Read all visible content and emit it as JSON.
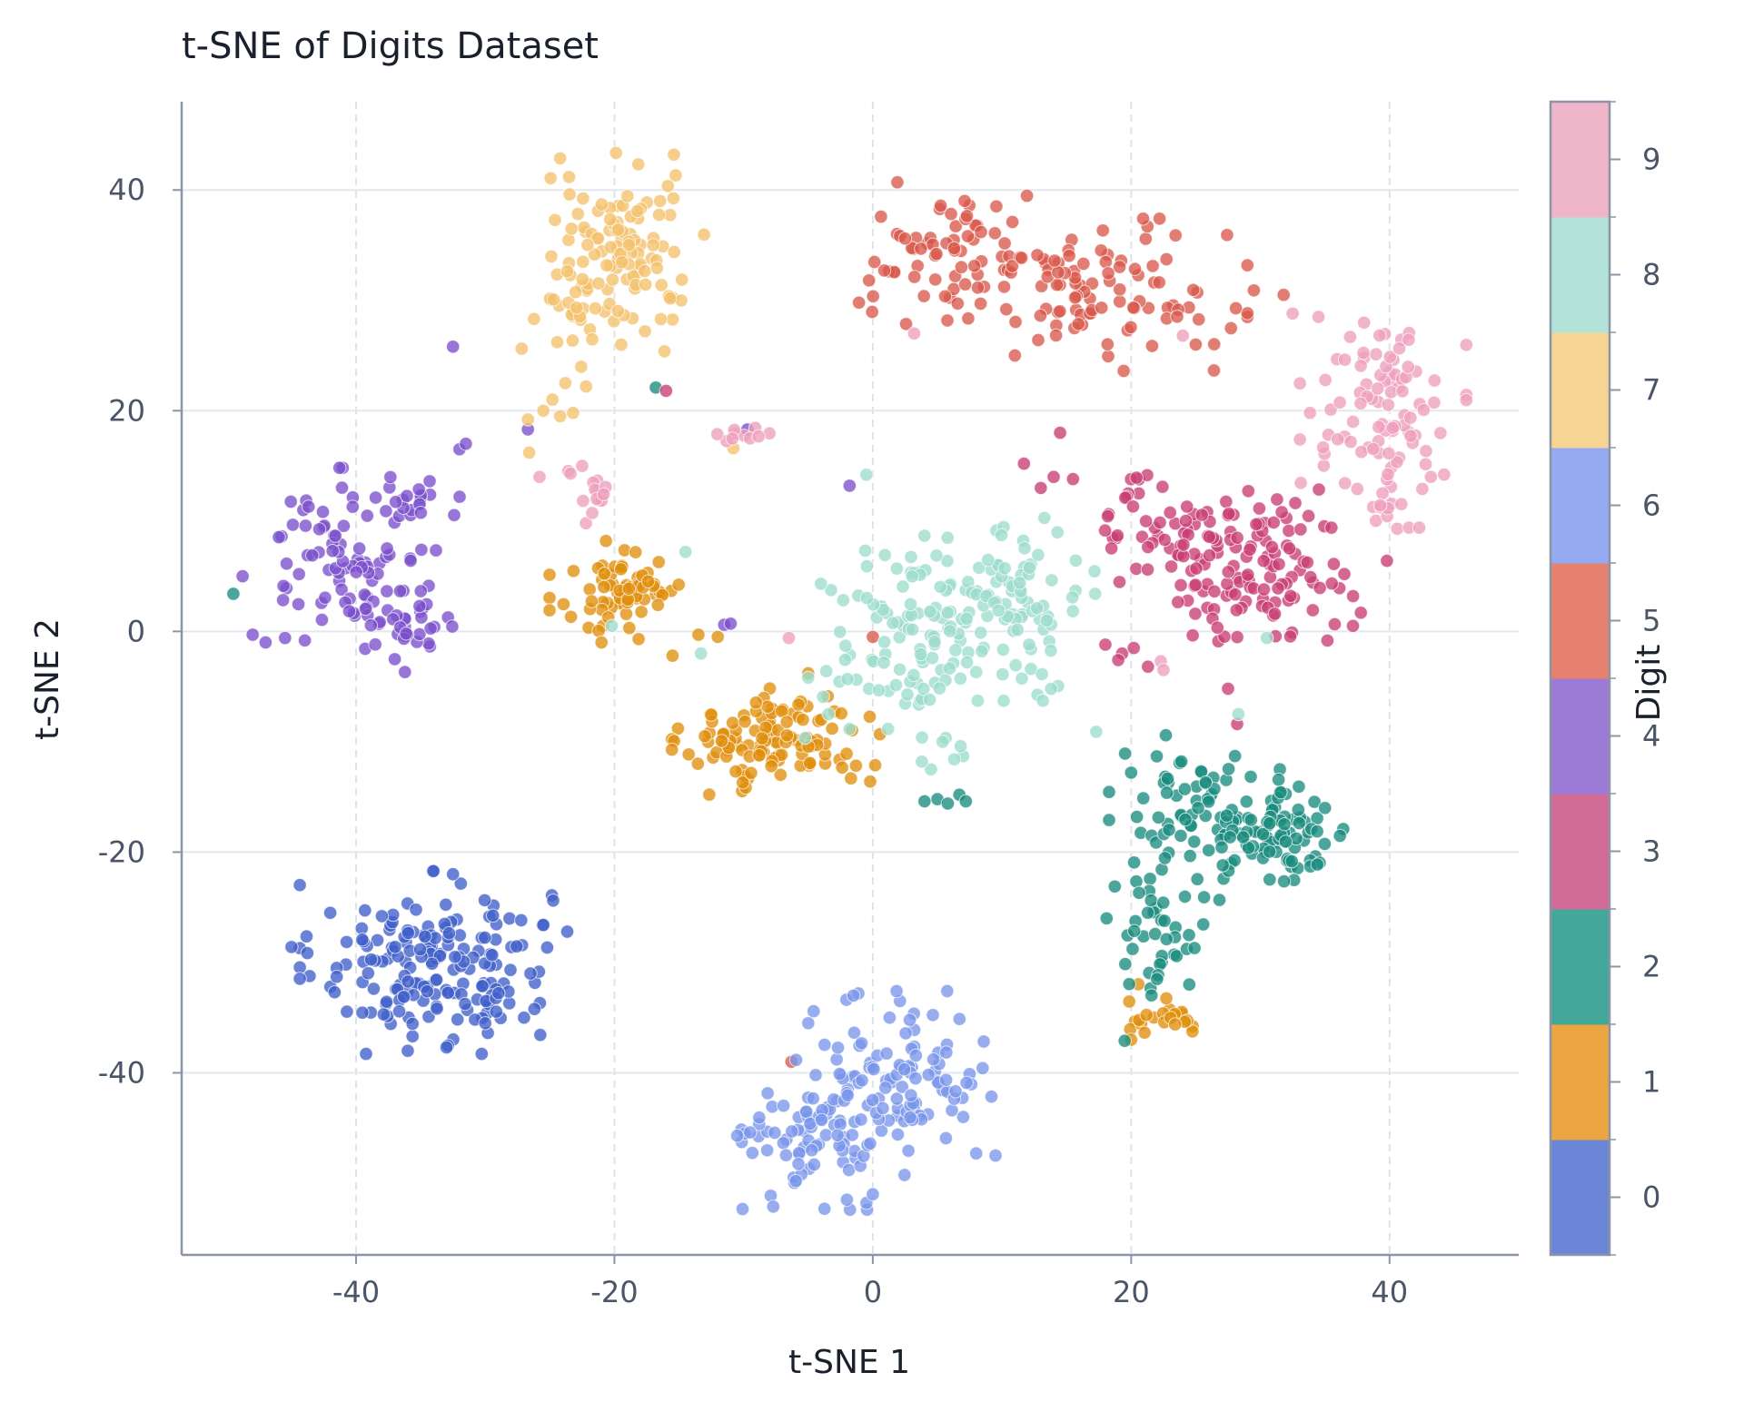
{
  "chart_data": {
    "type": "scatter",
    "title": "t-SNE of Digits Dataset",
    "xlabel": "t-SNE 1",
    "ylabel": "t-SNE 2",
    "xlim": [
      -53.5,
      50
    ],
    "ylim": [
      -56.5,
      48
    ],
    "xticks": [
      -40,
      -20,
      0,
      20,
      40
    ],
    "yticks": [
      -40,
      -20,
      0,
      20,
      40
    ],
    "grid": true,
    "colorbar": {
      "label": "Digit",
      "ticks": [
        "0",
        "1",
        "2",
        "3",
        "4",
        "5",
        "6",
        "7",
        "8",
        "9"
      ],
      "colors": [
        "#6b86d6",
        "#eba641",
        "#43a89a",
        "#d26a96",
        "#9b7bd6",
        "#e6806f",
        "#95aaf0",
        "#f6d594",
        "#b3e3d8",
        "#efb6ca"
      ]
    },
    "series": [
      {
        "label": "0",
        "color": "#3f5fc9",
        "center": [
          -34,
          -30
        ],
        "spread": [
          4.5,
          3.6
        ],
        "n": 180,
        "points": [
          [
            -38,
            -25.8
          ],
          [
            -42,
            -25.5
          ],
          [
            -32.5,
            -22
          ],
          [
            -25.5,
            -26.6
          ],
          [
            -45,
            -28.6
          ],
          [
            -41.5,
            -30.5
          ],
          [
            -41.5,
            -31.3
          ],
          [
            -26.5,
            -31
          ],
          [
            -27,
            -35
          ],
          [
            -36,
            -38
          ],
          [
            -30,
            -35.5
          ],
          [
            -33,
            -37.7
          ]
        ]
      },
      {
        "label": "1",
        "color": "#e08e0b",
        "clusters": [
          {
            "center": [
              -7.5,
              -10
            ],
            "spread": [
              3.5,
              2.1
            ],
            "n": 120
          },
          {
            "center": [
              -19.5,
              3.6
            ],
            "spread": [
              2.4,
              2.0
            ],
            "n": 70
          },
          {
            "center": [
              22.5,
              -34.5
            ],
            "spread": [
              1.8,
              1.1
            ],
            "n": 22
          }
        ],
        "points": [
          [
            -13.5,
            -0.3
          ],
          [
            -15.5,
            -2.2
          ],
          [
            -12,
            -0.5
          ],
          [
            -4,
            -8
          ],
          [
            -13,
            -9.5
          ],
          [
            -5,
            -3.8
          ],
          [
            20,
            -37
          ],
          [
            -21,
            -1
          ]
        ]
      },
      {
        "label": "2",
        "color": "#1a8c7e",
        "clusters": [
          {
            "center": [
              31.5,
              -18
            ],
            "spread": [
              2.8,
              2.5
            ],
            "n": 90
          },
          {
            "center": [
              24.5,
              -17
            ],
            "spread": [
              2.7,
              3.3
            ],
            "n": 65
          },
          {
            "center": [
              22,
              -27
            ],
            "spread": [
              2.1,
              2.6
            ],
            "n": 38
          }
        ],
        "points": [
          [
            5,
            -15.2
          ],
          [
            5.8,
            -15.6
          ],
          [
            6.7,
            -14.8
          ],
          [
            7.2,
            -15.4
          ],
          [
            4,
            -15.4
          ],
          [
            20,
            -12.8
          ],
          [
            19.5,
            -37.1
          ],
          [
            -49.5,
            3.4
          ],
          [
            -16.8,
            22.1
          ],
          [
            35,
            -16
          ],
          [
            22,
            -31.5
          ],
          [
            24.5,
            -32
          ]
        ]
      },
      {
        "label": "3",
        "color": "#c93e73",
        "clusters": [
          {
            "center": [
              29.5,
              5.5
            ],
            "spread": [
              3.6,
              3.2
            ],
            "n": 120
          },
          {
            "center": [
              22.5,
              10
            ],
            "spread": [
              2.2,
              2.4
            ],
            "n": 45
          }
        ],
        "points": [
          [
            13,
            13
          ],
          [
            11.7,
            15.2
          ],
          [
            14,
            14
          ],
          [
            15.5,
            13.8
          ],
          [
            14.5,
            18
          ],
          [
            19.3,
            -2
          ],
          [
            20.2,
            -1.5
          ],
          [
            18,
            -1.2
          ],
          [
            19,
            -2.6
          ],
          [
            21.3,
            -3.2
          ],
          [
            28.2,
            -8.4
          ],
          [
            27.5,
            -5.2
          ],
          [
            -16,
            21.8
          ],
          [
            35.5,
            9.4
          ],
          [
            39.8,
            6.4
          ],
          [
            36.5,
            5.2
          ]
        ]
      },
      {
        "label": "4",
        "color": "#7a4fcc",
        "clusters": [
          {
            "center": [
              -40.5,
              7
            ],
            "spread": [
              3.6,
              3.4
            ],
            "n": 90
          },
          {
            "center": [
              -36,
              0
            ],
            "spread": [
              2.2,
              1.6
            ],
            "n": 32
          },
          {
            "center": [
              -35,
              12
            ],
            "spread": [
              1.9,
              0.7
            ],
            "n": 14
          }
        ],
        "points": [
          [
            -32,
            16.5
          ],
          [
            -31.5,
            17
          ],
          [
            -32.5,
            25.8
          ],
          [
            -1.8,
            13.2
          ],
          [
            -26.7,
            18.3
          ],
          [
            -11.5,
            0.6
          ],
          [
            -11.0,
            0.7
          ],
          [
            -9.7,
            18.3
          ],
          [
            -45.5,
            -0.6
          ],
          [
            -48,
            -0.3
          ],
          [
            -47,
            -1
          ]
        ]
      },
      {
        "label": "5",
        "color": "#d9584a",
        "clusters": [
          {
            "center": [
              6,
              33.8
            ],
            "spread": [
              3.2,
              3.0
            ],
            "n": 70
          },
          {
            "center": [
              17.5,
              30.5
            ],
            "spread": [
              5.0,
              3.0
            ],
            "n": 95
          }
        ],
        "points": [
          [
            2.5,
            35.6
          ],
          [
            31.8,
            30.5
          ],
          [
            29.5,
            30.9
          ],
          [
            0,
            -0.5
          ],
          [
            -6.3,
            -39
          ],
          [
            25,
            26
          ],
          [
            11,
            25
          ]
        ]
      },
      {
        "label": "6",
        "color": "#7a96ea",
        "clusters": [
          {
            "center": [
              -3.5,
              -45.5
            ],
            "spread": [
              3.0,
              3.0
            ],
            "n": 90
          },
          {
            "center": [
              2.5,
              -39.5
            ],
            "spread": [
              3.2,
              3.0
            ],
            "n": 90
          }
        ],
        "points": [
          [
            -9.9,
            -45.5
          ],
          [
            -9.5,
            -45.4
          ],
          [
            -10.5,
            -45.7
          ],
          [
            8,
            -47.3
          ],
          [
            9.5,
            -47.5
          ],
          [
            7,
            -44
          ],
          [
            -1.5,
            -33
          ],
          [
            -5,
            -35.5
          ],
          [
            0,
            -51
          ],
          [
            -2,
            -51.5
          ]
        ]
      },
      {
        "label": "7",
        "color": "#f4c26c",
        "clusters": [
          {
            "center": [
              -19.5,
              36
            ],
            "spread": [
              2.8,
              3.2
            ],
            "n": 75
          },
          {
            "center": [
              -21,
              29.5
            ],
            "spread": [
              3.2,
              2.4
            ],
            "n": 55
          }
        ],
        "points": [
          [
            -24.2,
            19.5
          ],
          [
            -24.8,
            21
          ],
          [
            -23.8,
            22.5
          ],
          [
            -26.7,
            19.2
          ],
          [
            -23.2,
            19.8
          ],
          [
            -25.5,
            20
          ],
          [
            -26.6,
            16.2
          ],
          [
            -22.2,
            22.2
          ],
          [
            -10.8,
            16.6
          ],
          [
            -16.4,
            28.3
          ],
          [
            -17,
            35
          ],
          [
            -15.4,
            43.2
          ]
        ]
      },
      {
        "label": "8",
        "color": "#9edccd",
        "clusters": [
          {
            "center": [
              3.5,
              0
            ],
            "spread": [
              3.8,
              4.2
            ],
            "n": 115
          },
          {
            "center": [
              11,
              2
            ],
            "spread": [
              2.7,
              3.6
            ],
            "n": 80
          }
        ],
        "points": [
          [
            7,
            -11.3
          ],
          [
            6.3,
            -11.6
          ],
          [
            4.5,
            -12.5
          ],
          [
            3.8,
            -11.8
          ],
          [
            6.8,
            -10.4
          ],
          [
            5.4,
            -10
          ],
          [
            -0.5,
            14.2
          ],
          [
            -14.5,
            7.2
          ],
          [
            -13.3,
            -2
          ],
          [
            -3.6,
            -3.6
          ],
          [
            -5,
            -4.2
          ],
          [
            -20.2,
            0.5
          ],
          [
            30.5,
            -0.6
          ],
          [
            28.3,
            -7.5
          ],
          [
            17.3,
            -9.1
          ],
          [
            13.8,
            -5.2
          ]
        ]
      },
      {
        "label": "9",
        "color": "#ee9fbd",
        "clusters": [
          {
            "center": [
              39.5,
              19.5
            ],
            "spread": [
              2.8,
              4.6
            ],
            "n": 100
          },
          {
            "center": [
              -21.5,
              12
            ],
            "spread": [
              0.9,
              1.6
            ],
            "n": 15
          },
          {
            "center": [
              -10.3,
              17.8
            ],
            "spread": [
              1.0,
              0.35
            ],
            "n": 10
          }
        ],
        "points": [
          [
            -25.8,
            14
          ],
          [
            -22.5,
            15
          ],
          [
            -6.5,
            -0.6
          ],
          [
            3.2,
            27
          ],
          [
            24,
            26.8
          ],
          [
            32.5,
            28.8
          ],
          [
            34.5,
            28.5
          ],
          [
            22.3,
            -2.7
          ],
          [
            22.5,
            -3.5
          ],
          [
            40.6,
            9.3
          ],
          [
            41.5,
            9.4
          ],
          [
            42.3,
            9.4
          ],
          [
            43.2,
            14
          ]
        ]
      }
    ]
  }
}
